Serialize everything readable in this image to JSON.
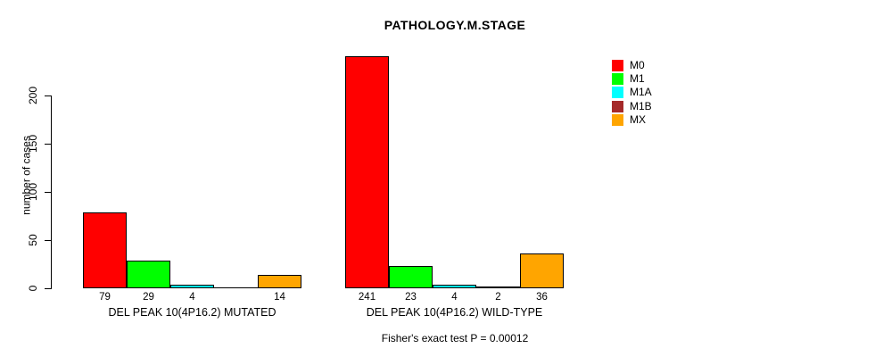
{
  "title": "PATHOLOGY.M.STAGE",
  "y_axis": {
    "label": "number of cases",
    "ticks": [
      0,
      50,
      100,
      150,
      200
    ]
  },
  "footer": "Fisher's exact test P = 0.00012",
  "legend": {
    "items": [
      {
        "label": "M0",
        "color": "#ff0000"
      },
      {
        "label": "M1",
        "color": "#00ff00"
      },
      {
        "label": "M1A",
        "color": "#00ffff"
      },
      {
        "label": "M1B",
        "color": "#a52a2a"
      },
      {
        "label": "MX",
        "color": "#ffa500"
      }
    ]
  },
  "chart_data": {
    "type": "bar",
    "title": "PATHOLOGY.M.STAGE",
    "xlabel": "",
    "ylabel": "number of cases",
    "ylim": [
      0,
      245
    ],
    "yticks": [
      0,
      50,
      100,
      150,
      200
    ],
    "grid": false,
    "legend_position": "top-right",
    "categories": [
      "DEL PEAK 10(4P16.2) MUTATED",
      "DEL PEAK 10(4P16.2) WILD-TYPE"
    ],
    "series": [
      {
        "name": "M0",
        "color": "#ff0000",
        "values": [
          79,
          241
        ]
      },
      {
        "name": "M1",
        "color": "#00ff00",
        "values": [
          29,
          23
        ]
      },
      {
        "name": "M1A",
        "color": "#00ffff",
        "values": [
          4,
          4
        ]
      },
      {
        "name": "M1B",
        "color": "#a52a2a",
        "values": [
          0,
          2
        ]
      },
      {
        "name": "MX",
        "color": "#ffa500",
        "values": [
          14,
          36
        ]
      }
    ],
    "bar_value_labels": [
      [
        "79",
        "29",
        "4",
        "",
        "14"
      ],
      [
        "241",
        "23",
        "4",
        "2",
        "36"
      ]
    ],
    "annotation": "Fisher's exact test P = 0.00012"
  }
}
